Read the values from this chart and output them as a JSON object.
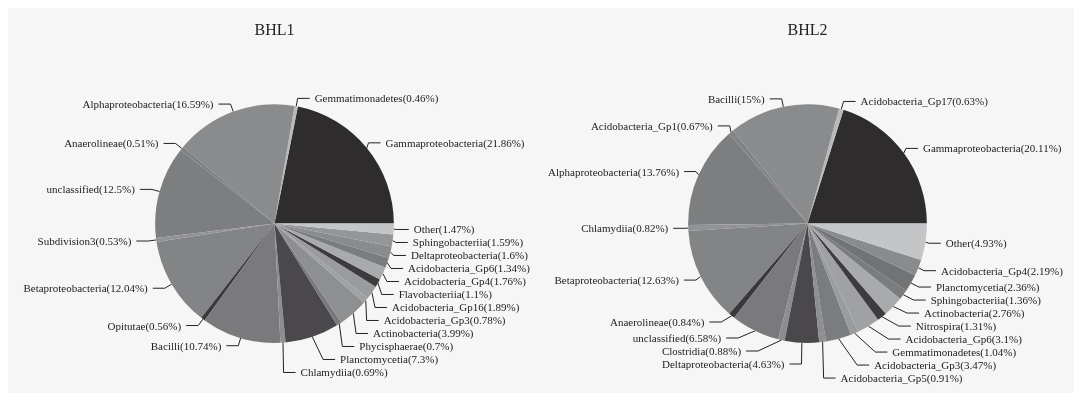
{
  "chart_data": [
    {
      "type": "pie",
      "title": "BHL1",
      "legend": false,
      "categories": [
        "Gammaproteobacteria(21.86%)",
        "Gemmatimonadetes(0.46%)",
        "Alphaproteobacteria(16.59%)",
        "Anaerolineae(0.51%)",
        "unclassified(12.5%)",
        "Subdivision3(0.53%)",
        "Betaproteobacteria(12.04%)",
        "Opitutae(0.56%)",
        "Bacilli(10.74%)",
        "Chlamydiia(0.69%)",
        "Planctomycetia(7.3%)",
        "Phycisphaerae(0.7%)",
        "Actinobacteria(3.99%)",
        "Acidobacteria_Gp3(0.78%)",
        "Acidobacteria_Gp16(1.89%)",
        "Flavobacteriia(1.1%)",
        "Acidobacteria_Gp4(1.76%)",
        "Acidobacteria_Gp6(1.34%)",
        "Deltaproteobacteria(1.6%)",
        "Sphingobacteriia(1.59%)",
        "Other(1.47%)"
      ],
      "values": [
        21.86,
        0.46,
        16.59,
        0.51,
        12.5,
        0.53,
        12.04,
        0.56,
        10.74,
        0.69,
        7.3,
        0.7,
        3.99,
        0.78,
        1.89,
        1.1,
        1.76,
        1.34,
        1.6,
        1.59,
        1.47
      ],
      "colors": [
        "#2f2c2d",
        "#b8b9bb",
        "#8a8b8d",
        "#7f8082",
        "#7d7e80",
        "#929395",
        "#838486",
        "#3a383a",
        "#7a797c",
        "#8c8d8f",
        "#4a484b",
        "#78797b",
        "#8e8f91",
        "#a0a1a3",
        "#9a9b9d",
        "#3d3b3e",
        "#a9aaac",
        "#7b7c7e",
        "#8a8b8d",
        "#959698",
        "#c4c5c7"
      ]
    },
    {
      "type": "pie",
      "title": "BHL2",
      "legend": false,
      "categories": [
        "Gammaproteobacteria(20.11%)",
        "Acidobacteria_Gp17(0.63%)",
        "Bacilli(15%)",
        "Acidobacteria_Gp1(0.67%)",
        "Alphaproteobacteria(13.76%)",
        "Chlamydiia(0.82%)",
        "Betaproteobacteria(12.63%)",
        "Anaerolineae(0.84%)",
        "unclassified(6.58%)",
        "Clostridia(0.88%)",
        "Deltaproteobacteria(4.63%)",
        "Acidobacteria_Gp5(0.91%)",
        "Acidobacteria_Gp3(3.47%)",
        "Gemmatimonadetes(1.04%)",
        "Acidobacteria_Gp6(3.1%)",
        "Nitrospira(1.31%)",
        "Actinobacteria(2.76%)",
        "Sphingobacteriia(1.36%)",
        "Planctomycetia(2.36%)",
        "Acidobacteria_Gp4(2.19%)",
        "Other(4.93%)"
      ],
      "values": [
        20.11,
        0.63,
        15,
        0.67,
        13.76,
        0.82,
        12.63,
        0.84,
        6.58,
        0.88,
        4.63,
        0.91,
        3.47,
        1.04,
        3.1,
        1.31,
        2.76,
        1.36,
        2.36,
        2.19,
        4.93
      ],
      "colors": [
        "#2f2c2d",
        "#b8b9bb",
        "#8a8b8d",
        "#828385",
        "#7d7e80",
        "#929395",
        "#838486",
        "#3a383a",
        "#7a797c",
        "#8c8d8f",
        "#4a484b",
        "#8e8f91",
        "#7b7c7e",
        "#9a9b9d",
        "#a0a1a3",
        "#3d3b3e",
        "#a9aaac",
        "#7b7c7e",
        "#727375",
        "#8a8b8d",
        "#c4c5c7"
      ]
    }
  ]
}
